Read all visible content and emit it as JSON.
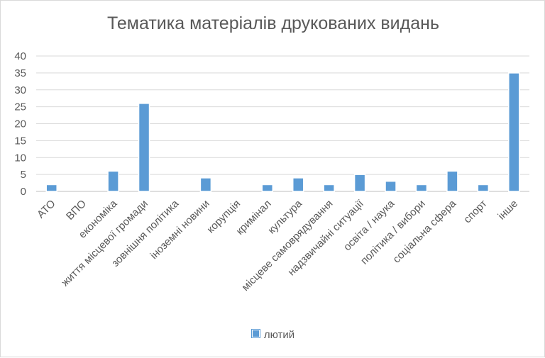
{
  "chart_data": {
    "type": "bar",
    "title": "Тематика матеріалів друкованих видань",
    "categories": [
      "АТО",
      "ВПО",
      "економіка",
      "життя місцевої громади",
      "зовнішня політика",
      "іноземні новини",
      "корупція",
      "кримінал",
      "культура",
      "місцеве самоврядування",
      "надзвичайні ситуації",
      "освіта / наука",
      "політика / вибори",
      "соціальна сфера",
      "спорт",
      "інше"
    ],
    "series": [
      {
        "name": "лютий",
        "values": [
          2,
          0,
          6,
          26,
          0,
          4,
          0,
          2,
          4,
          2,
          5,
          3,
          2,
          6,
          2,
          35
        ],
        "color": "#5b9bd5"
      }
    ],
    "ylim": [
      0,
      40
    ],
    "yticks": [
      "0",
      "5",
      "10",
      "15",
      "20",
      "25",
      "30",
      "35",
      "40"
    ],
    "grid": true,
    "legend_position": "bottom"
  }
}
